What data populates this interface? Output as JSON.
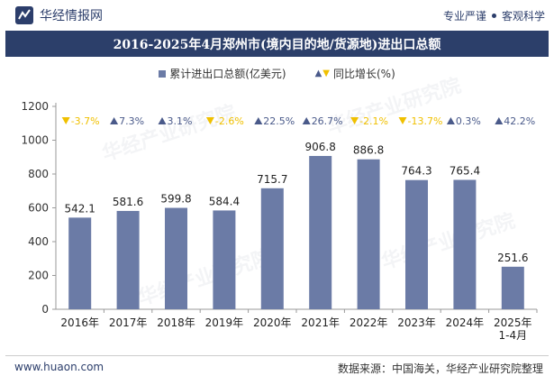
{
  "header": {
    "brand": "华经情报网",
    "tag1": "专业严谨",
    "tag2": "客观科学"
  },
  "footer": {
    "website": "www.huaon.com",
    "source": "数据来源：中国海关，华经产业研究院整理"
  },
  "watermark_text": "华经产业研究院",
  "colors": {
    "bar": "#6b7ba6",
    "up": "#4a5a8a",
    "down": "#f0c000",
    "title_bg": "#2c3f6a"
  },
  "chart_data": {
    "type": "bar",
    "title": "2016-2025年4月郑州市(境内目的地/货源地)进出口总额",
    "categories": [
      "2016年",
      "2017年",
      "2018年",
      "2019年",
      "2020年",
      "2021年",
      "2022年",
      "2023年",
      "2024年",
      "2025年\n1-4月"
    ],
    "series": [
      {
        "name": "累计进出口总额(亿美元)",
        "values": [
          542.1,
          581.6,
          599.8,
          584.4,
          715.7,
          906.8,
          886.8,
          764.3,
          765.4,
          251.6
        ]
      },
      {
        "name": "同比增长(%)",
        "values": [
          -3.7,
          7.3,
          3.1,
          -2.6,
          22.5,
          26.7,
          -2.1,
          -13.7,
          0.3,
          42.2
        ]
      }
    ],
    "yticks": [
      0,
      200,
      400,
      600,
      800,
      1000,
      1200
    ],
    "ylim": [
      0,
      1200
    ]
  }
}
